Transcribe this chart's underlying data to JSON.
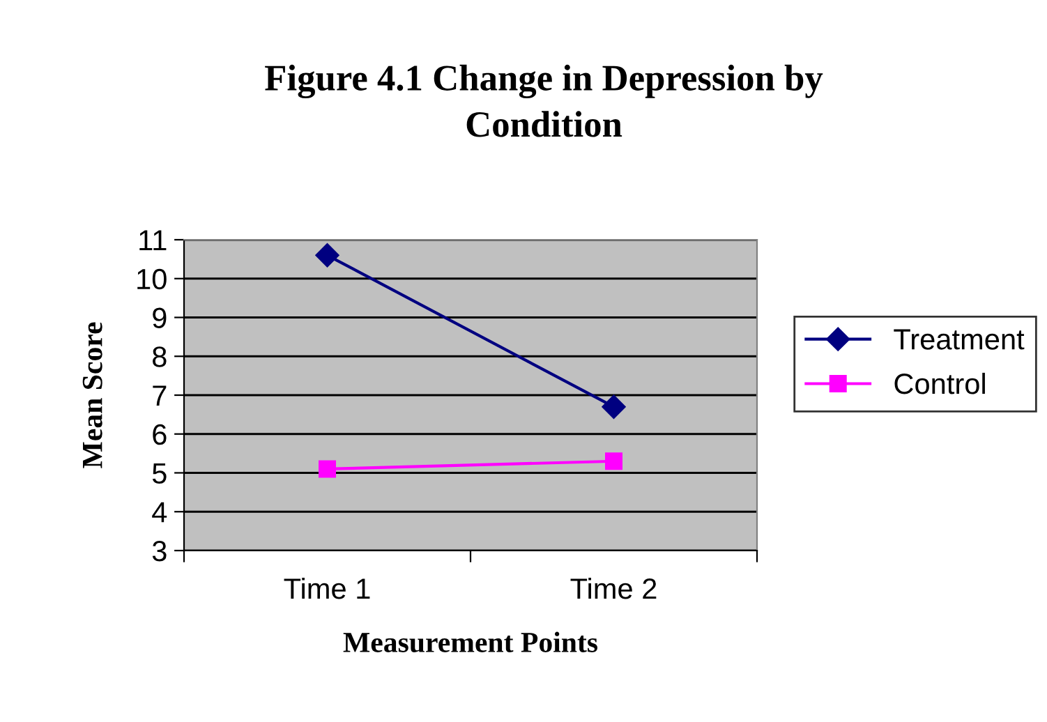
{
  "chart_data": {
    "type": "line",
    "title": "Figure 4.1 Change in Depression by\nCondition",
    "xlabel": "Measurement Points",
    "ylabel": "Mean Score",
    "categories": [
      "Time 1",
      "Time 2"
    ],
    "series": [
      {
        "name": "Treatment",
        "color": "#000080",
        "values": [
          10.6,
          6.7
        ],
        "marker": "diamond"
      },
      {
        "name": "Control",
        "color": "#ff00ff",
        "values": [
          5.1,
          5.3
        ],
        "marker": "square"
      }
    ],
    "ylim": [
      3,
      11
    ],
    "yticks": [
      3,
      4,
      5,
      6,
      7,
      8,
      9,
      10,
      11
    ],
    "grid": "y",
    "legend": "right"
  }
}
